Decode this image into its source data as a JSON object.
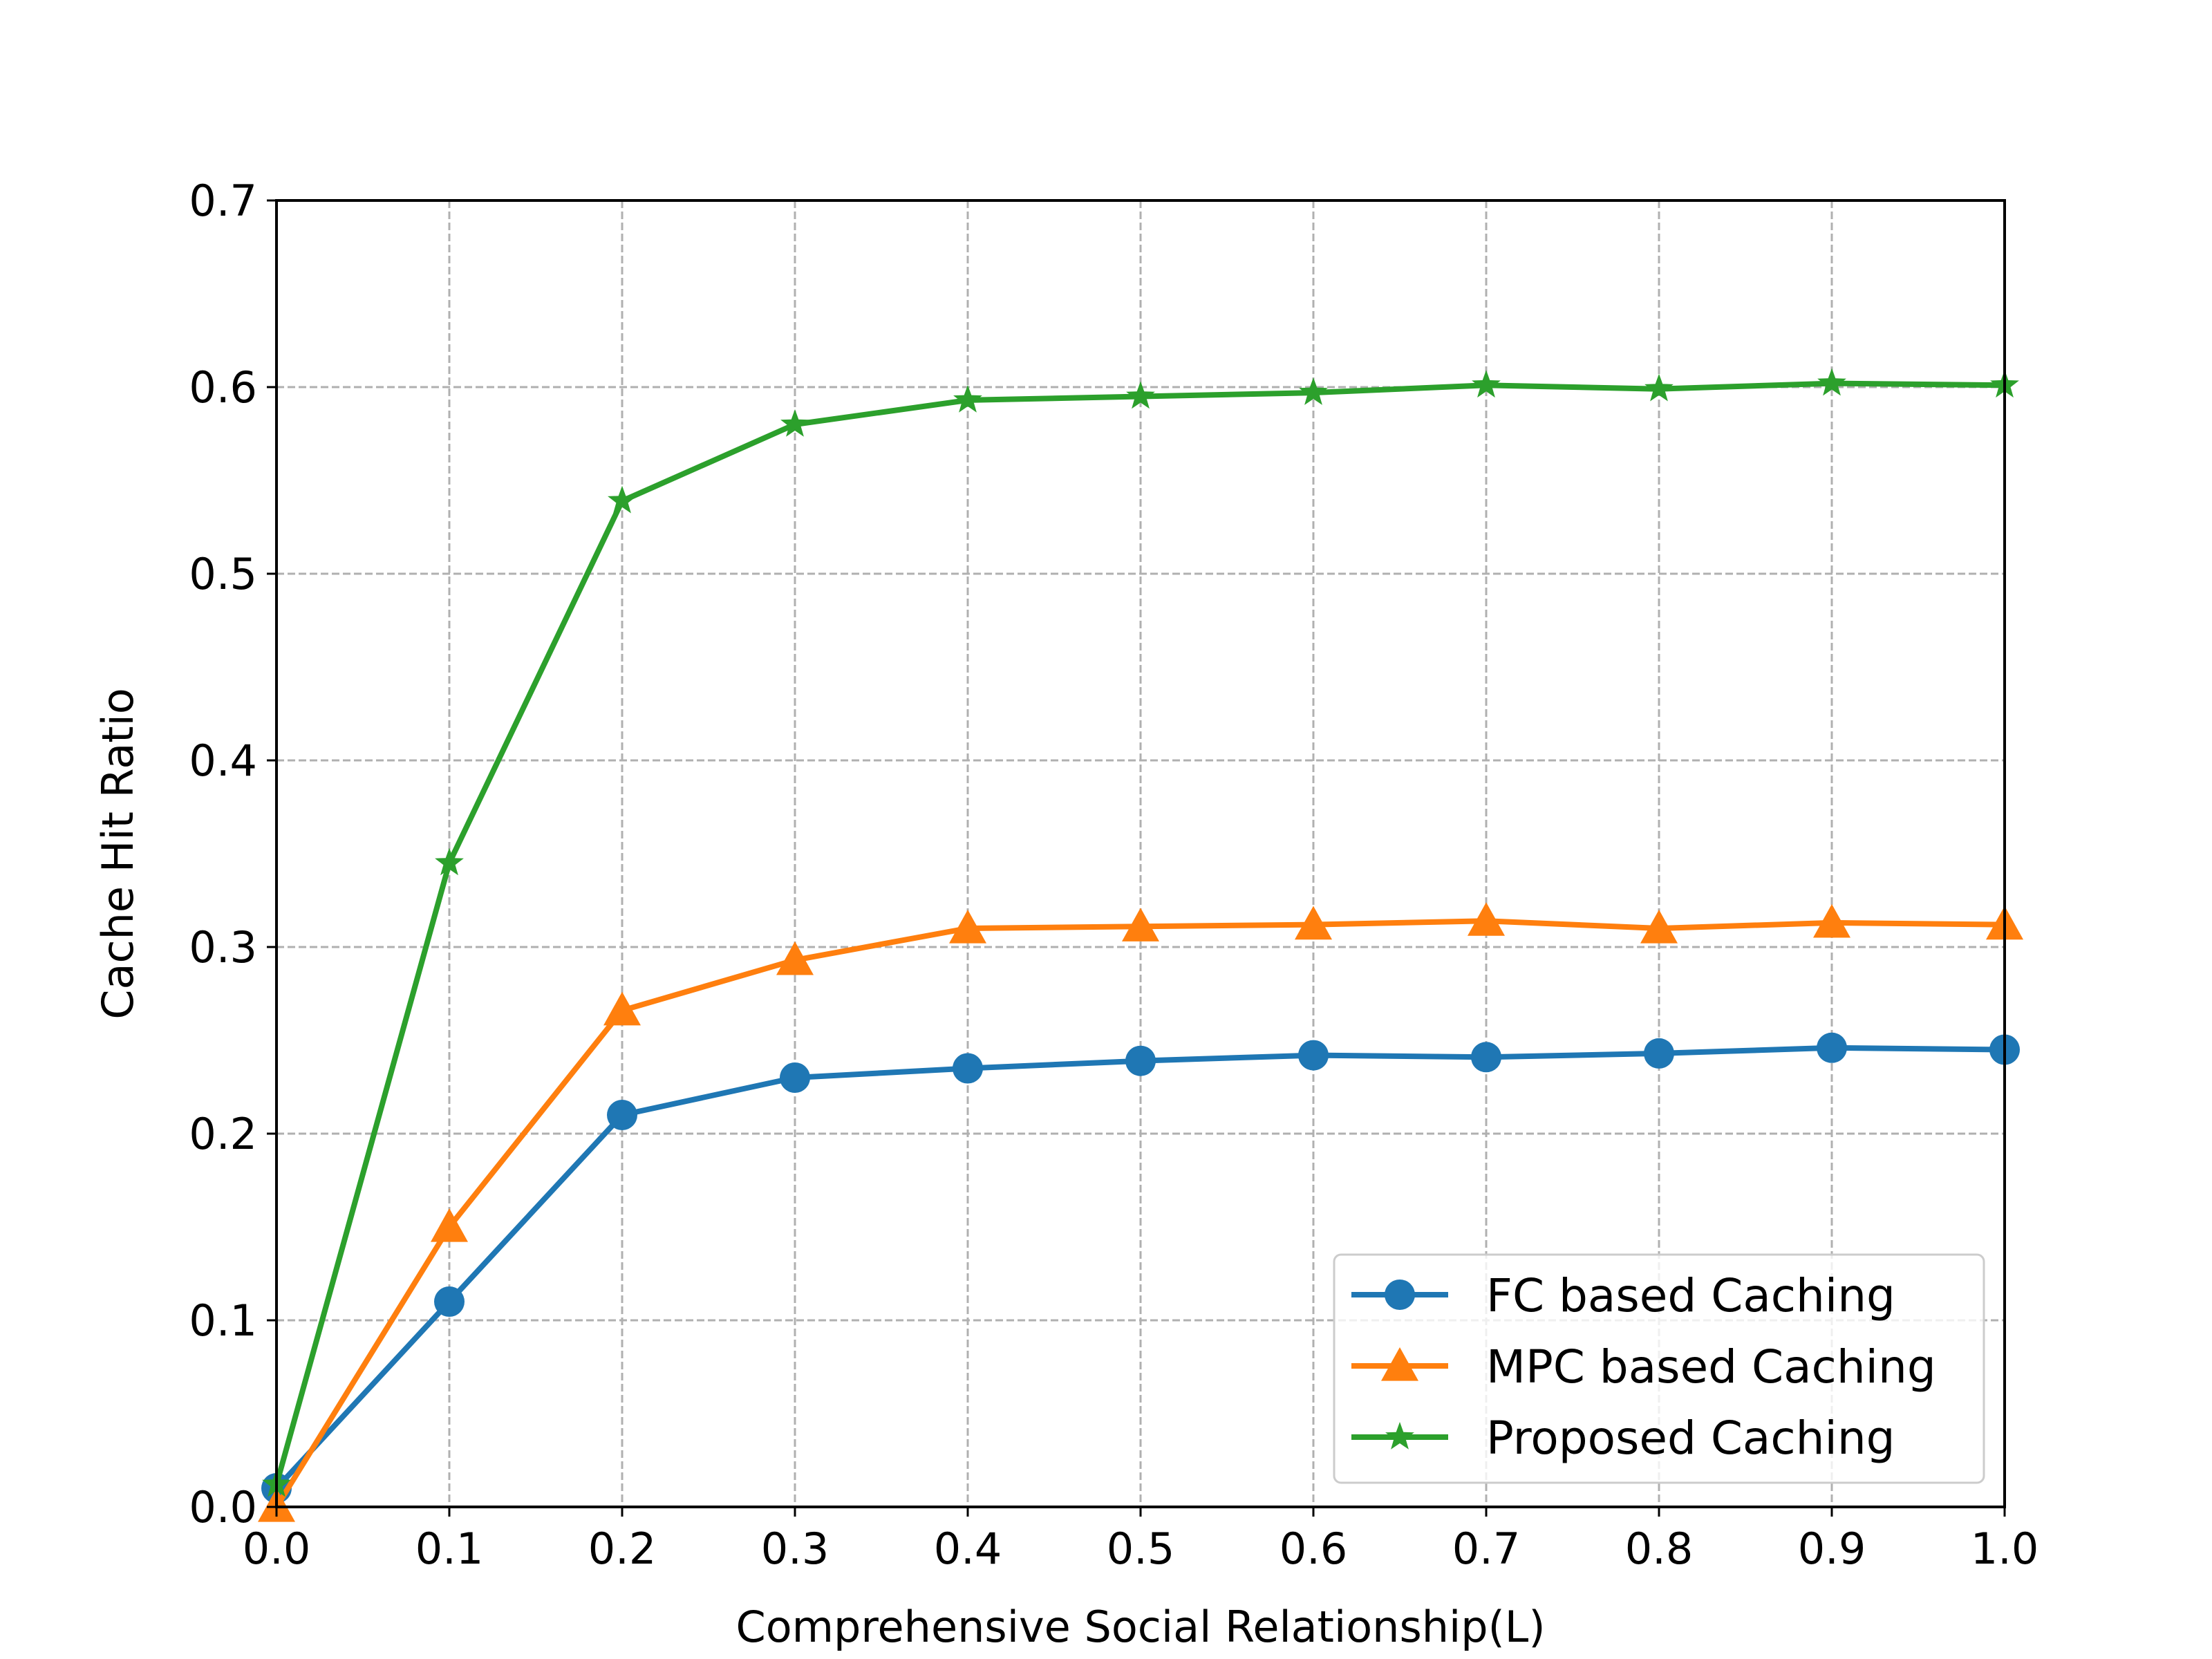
{
  "chart_data": {
    "type": "line",
    "title": "",
    "xlabel": "Comprehensive Social Relationship(L)",
    "ylabel": "Cache Hit Ratio",
    "xlim": [
      0.0,
      1.0
    ],
    "ylim": [
      0.0,
      0.7
    ],
    "x_ticks": [
      "0.0",
      "0.1",
      "0.2",
      "0.3",
      "0.4",
      "0.5",
      "0.6",
      "0.7",
      "0.8",
      "0.9",
      "1.0"
    ],
    "y_ticks": [
      "0.0",
      "0.1",
      "0.2",
      "0.3",
      "0.4",
      "0.5",
      "0.6",
      "0.7"
    ],
    "grid": true,
    "legend_position": "bottom-right",
    "x": [
      0.0,
      0.1,
      0.2,
      0.3,
      0.4,
      0.5,
      0.6,
      0.7,
      0.8,
      0.9,
      1.0
    ],
    "series": [
      {
        "name": "FC based Caching",
        "color": "#1f77b4",
        "marker": "circle",
        "values": [
          0.01,
          0.11,
          0.21,
          0.23,
          0.235,
          0.239,
          0.242,
          0.241,
          0.243,
          0.246,
          0.245
        ]
      },
      {
        "name": "MPC based Caching",
        "color": "#ff7f0e",
        "marker": "triangle",
        "values": [
          0.0,
          0.15,
          0.266,
          0.293,
          0.31,
          0.311,
          0.312,
          0.314,
          0.31,
          0.313,
          0.312
        ]
      },
      {
        "name": "Proposed Caching",
        "color": "#2ca02c",
        "marker": "star",
        "values": [
          0.012,
          0.345,
          0.539,
          0.58,
          0.593,
          0.595,
          0.597,
          0.601,
          0.599,
          0.602,
          0.601
        ]
      }
    ]
  }
}
